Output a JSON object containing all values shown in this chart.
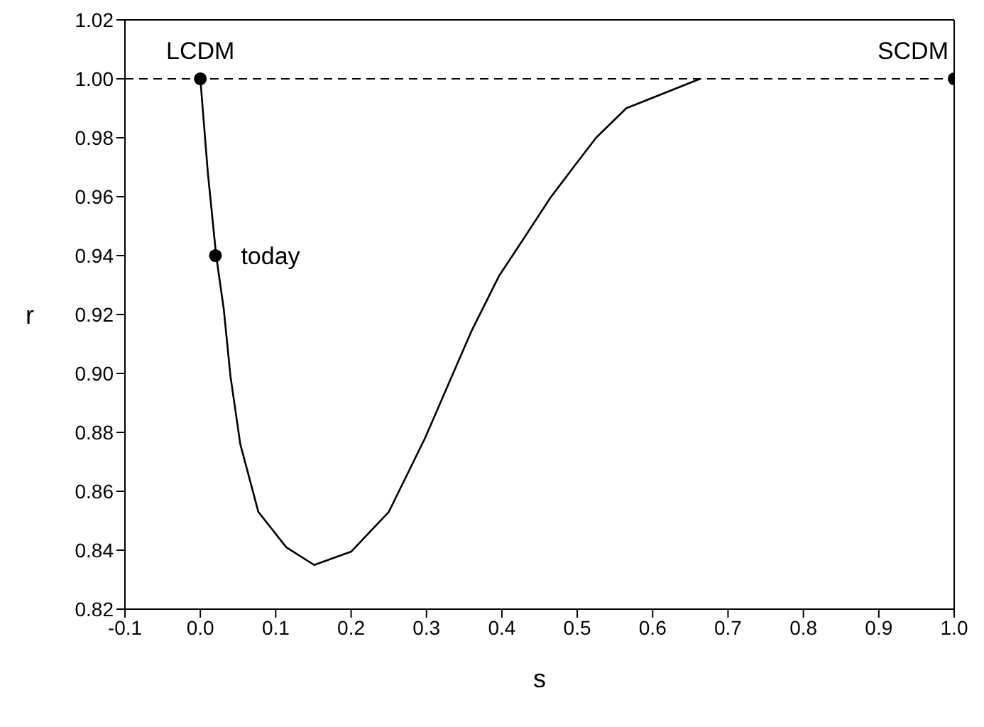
{
  "chart_data": {
    "type": "line",
    "xlabel": "s",
    "ylabel": "r",
    "xlim": [
      -0.1,
      1.0
    ],
    "ylim": [
      0.82,
      1.02
    ],
    "xticks": [
      -0.1,
      {
        "value": 0,
        "label": "0.0"
      },
      0.1,
      0.2,
      0.3,
      0.4,
      0.5,
      0.6,
      0.7,
      0.8,
      0.9,
      {
        "value": 1,
        "label": "1.0"
      }
    ],
    "yticks": [
      0.82,
      0.84,
      0.86,
      0.88,
      {
        "value": 0.9,
        "label": "0.90"
      },
      0.92,
      0.94,
      0.96,
      0.98,
      {
        "value": 1,
        "label": "1.00"
      },
      1.02
    ],
    "series": [
      {
        "color": "#000000",
        "marker": "none",
        "line_style": "solid",
        "x": [
          0,
          0.01,
          0.021,
          0.031,
          0.04,
          0.053,
          0.077,
          0.114,
          0.151,
          0.2,
          0.25,
          0.298,
          0.359,
          0.396,
          0.427,
          0.464,
          0.495,
          0.525,
          0.565,
          0.663
        ],
        "values": [
          1.0,
          0.968,
          0.94,
          0.922,
          0.899,
          0.876,
          0.853,
          0.841,
          0.835,
          0.8395,
          0.853,
          0.878,
          0.914,
          0.933,
          0.945,
          0.9595,
          0.97,
          0.98,
          0.99,
          1.0
        ]
      },
      {
        "type": "scatter",
        "color": "#000000",
        "marker": "circle",
        "x": [
          0,
          0.02,
          1.0
        ],
        "values": [
          1.0,
          0.94,
          1.0
        ]
      }
    ],
    "ref_lines": [
      {
        "axis": "y",
        "value": 1.0,
        "color": "#000000",
        "line_style": "dashed"
      }
    ],
    "annotations": [
      {
        "text": "LCDM",
        "x": 0,
        "y": 1.0
      },
      {
        "text": "today",
        "x": 0.02,
        "y": 0.94
      },
      {
        "text": "SCDM",
        "x": 1.0,
        "y": 1.0
      }
    ]
  }
}
